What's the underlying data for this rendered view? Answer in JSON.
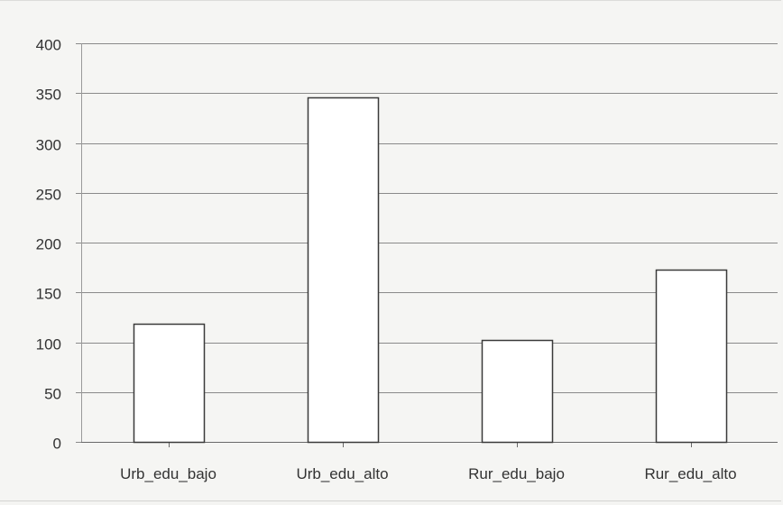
{
  "chart_data": {
    "type": "bar",
    "title": "",
    "xlabel": "",
    "ylabel": "",
    "categories": [
      "Urb_edu_bajo",
      "Urb_edu_alto",
      "Rur_edu_bajo",
      "Rur_edu_alto"
    ],
    "values": [
      119,
      346,
      102,
      173
    ],
    "ylim": [
      0,
      400
    ],
    "yticks": [
      0,
      50,
      100,
      150,
      200,
      250,
      300,
      350,
      400
    ],
    "grid": true,
    "legend": "none",
    "colors": {
      "bar_fill": "#ffffff",
      "bar_stroke": "#3a3a3a",
      "grid": "#8a8a8a",
      "text": "#333333"
    }
  }
}
